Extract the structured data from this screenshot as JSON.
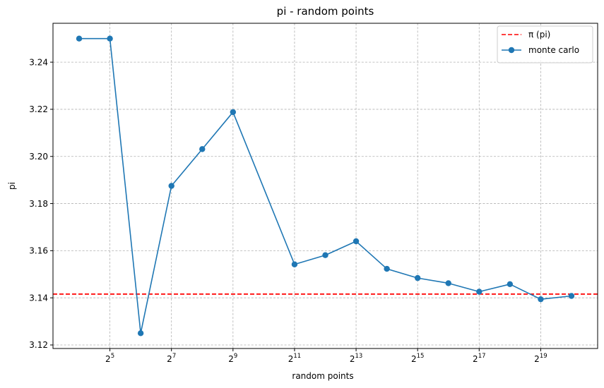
{
  "chart_data": {
    "type": "line",
    "title": "pi - random points",
    "xlabel": "random points",
    "ylabel": "pi",
    "x_scale": "log2",
    "x_tick_base": "2",
    "x_ticks": [
      5,
      7,
      9,
      11,
      13,
      15,
      17,
      19
    ],
    "y_ticks": [
      "3.12",
      "3.14",
      "3.16",
      "3.18",
      "3.20",
      "3.22",
      "3.24"
    ],
    "xlim_log2": [
      3.15,
      20.85
    ],
    "ylim": [
      3.1185,
      3.2565
    ],
    "grid": true,
    "legend_position": "top-right",
    "reference_line": {
      "name": "π (pi)",
      "value": 3.14159,
      "color": "#ff0000",
      "style": "dashed"
    },
    "series": [
      {
        "name": "monte carlo",
        "color": "#1f77b4",
        "marker": "circle",
        "x_log2": [
          4,
          5,
          6,
          7,
          8,
          9,
          11,
          12,
          13,
          14,
          15,
          16,
          17,
          18,
          19,
          20
        ],
        "values": [
          3.25,
          3.25,
          3.125,
          3.1875,
          3.2031,
          3.2188,
          3.1542,
          3.1581,
          3.164,
          3.1523,
          3.1484,
          3.1462,
          3.1426,
          3.1458,
          3.1394,
          3.1408
        ]
      }
    ]
  }
}
